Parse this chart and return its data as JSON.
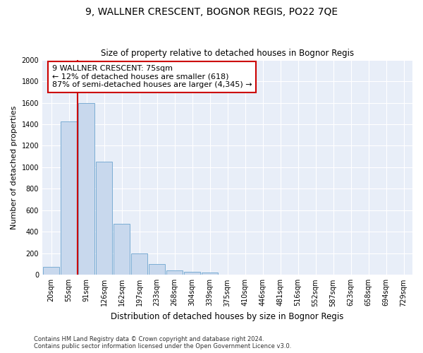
{
  "title": "9, WALLNER CRESCENT, BOGNOR REGIS, PO22 7QE",
  "subtitle": "Size of property relative to detached houses in Bognor Regis",
  "xlabel": "Distribution of detached houses by size in Bognor Regis",
  "ylabel": "Number of detached properties",
  "categories": [
    "20sqm",
    "55sqm",
    "91sqm",
    "126sqm",
    "162sqm",
    "197sqm",
    "233sqm",
    "268sqm",
    "304sqm",
    "339sqm",
    "375sqm",
    "410sqm",
    "446sqm",
    "481sqm",
    "516sqm",
    "552sqm",
    "587sqm",
    "623sqm",
    "658sqm",
    "694sqm",
    "729sqm"
  ],
  "values": [
    75,
    1425,
    1600,
    1050,
    475,
    200,
    100,
    40,
    30,
    20,
    0,
    0,
    0,
    0,
    0,
    0,
    0,
    0,
    0,
    0,
    0
  ],
  "bar_color": "#c8d8ed",
  "bar_edge_color": "#7badd4",
  "property_line_x": 1.5,
  "property_line_color": "#cc0000",
  "annotation_text": "9 WALLNER CRESCENT: 75sqm\n← 12% of detached houses are smaller (618)\n87% of semi-detached houses are larger (4,345) →",
  "annotation_box_color": "#ffffff",
  "annotation_box_edge_color": "#cc0000",
  "ylim": [
    0,
    2000
  ],
  "yticks": [
    0,
    200,
    400,
    600,
    800,
    1000,
    1200,
    1400,
    1600,
    1800,
    2000
  ],
  "footer": "Contains HM Land Registry data © Crown copyright and database right 2024.\nContains public sector information licensed under the Open Government Licence v3.0.",
  "fig_bg_color": "#ffffff",
  "ax_bg_color": "#e8eef8",
  "grid_color": "#ffffff",
  "title_fontsize": 10,
  "subtitle_fontsize": 8.5,
  "tick_fontsize": 7,
  "ylabel_fontsize": 8,
  "xlabel_fontsize": 8.5,
  "footer_fontsize": 6,
  "annotation_fontsize": 8
}
